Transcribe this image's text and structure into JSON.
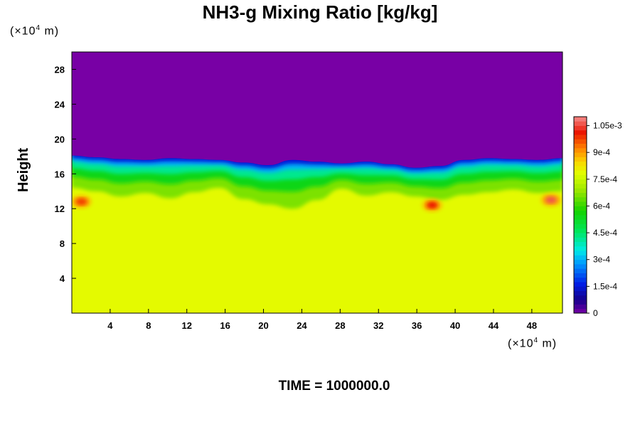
{
  "chart_data": {
    "type": "heatmap",
    "title": "NH3-g Mixing Ratio [kg/kg]",
    "ylabel": "Height",
    "x_unit": {
      "prefix": "(×10",
      "exp": "4",
      "suffix": " m)"
    },
    "y_unit": {
      "prefix": "(×10",
      "exp": "4",
      "suffix": " m)"
    },
    "xlim": [
      0,
      51.2
    ],
    "ylim": [
      0,
      30
    ],
    "x_ticks": [
      "4",
      "8",
      "12",
      "16",
      "20",
      "24",
      "28",
      "32",
      "36",
      "40",
      "44",
      "48"
    ],
    "y_ticks": [
      "4",
      "8",
      "12",
      "16",
      "20",
      "24",
      "28"
    ],
    "colorbar": {
      "range": [
        0,
        0.0011
      ],
      "ticks": [
        "0",
        "1.5e-4",
        "3e-4",
        "4.5e-4",
        "6e-4",
        "7.5e-4",
        "9e-4",
        "1.05e-3"
      ]
    },
    "fields": {
      "lower_value": 0.00079,
      "upper_value": 0.0,
      "top_boundary_height": [
        18.1,
        17.9,
        17.7,
        17.6,
        17.8,
        17.7,
        17.6,
        17.3,
        17.0,
        17.6,
        17.4,
        17.2,
        17.4,
        17.1,
        16.7,
        16.9,
        17.6,
        17.8,
        17.7,
        17.6,
        17.8
      ],
      "boundary_x": [
        0,
        2.56,
        5.12,
        7.68,
        10.24,
        12.8,
        15.36,
        17.92,
        20.48,
        23.04,
        25.6,
        28.16,
        30.72,
        33.28,
        35.84,
        38.4,
        40.96,
        43.52,
        46.08,
        48.64,
        51.2
      ],
      "saturated_base_height": [
        14.4,
        14.0,
        13.4,
        13.8,
        13.2,
        13.9,
        14.4,
        13.1,
        12.5,
        12.0,
        13.0,
        14.3,
        13.5,
        13.9,
        13.4,
        13.0,
        13.6,
        13.9,
        14.2,
        13.8,
        14.0
      ],
      "high_spots": [
        {
          "x": 1.0,
          "y": 12.8,
          "value": 0.00098
        },
        {
          "x": 37.6,
          "y": 12.4,
          "value": 0.00101
        },
        {
          "x": 50.0,
          "y": 13.0,
          "value": 0.00106
        }
      ]
    }
  },
  "time_label": "TIME = 1000000.0"
}
